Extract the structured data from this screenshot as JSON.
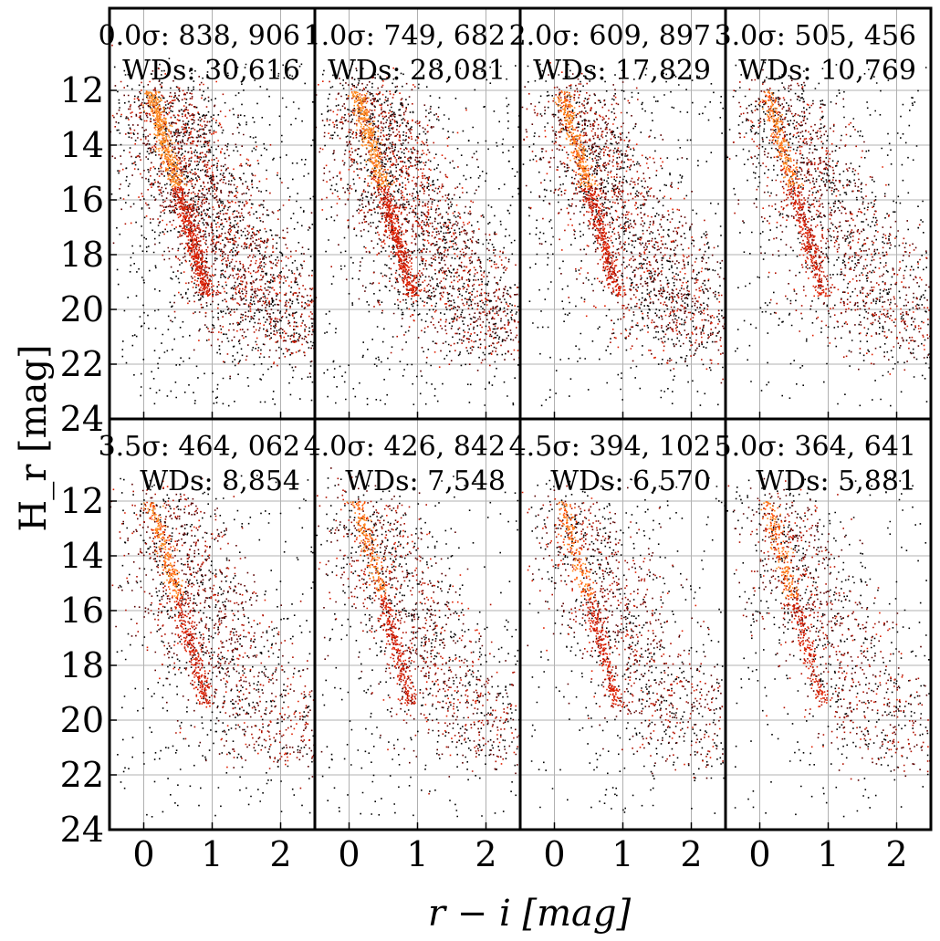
{
  "chart_data": {
    "type": "heatmap",
    "title": "",
    "xlabel": "r − i [mag]",
    "ylabel": "H_r [mag]",
    "xlim": [
      -0.5,
      2.5
    ],
    "ylim": [
      24,
      9
    ],
    "x_ticks": [
      0,
      1,
      2
    ],
    "y_ticks": [
      12,
      14,
      16,
      18,
      20,
      22,
      24
    ],
    "grid": true,
    "colormap": [
      "#000000",
      "#5a0000",
      "#b01000",
      "#e02000",
      "#ff4a00",
      "#ff8a20"
    ],
    "grid_layout": "2 rows x 4 columns, shared axes",
    "panels": [
      {
        "threshold": "0.0σ",
        "total": "838, 906",
        "wds": "30,616",
        "label_line1": "0.0σ: 838, 906",
        "label_line2": "WDs: 30,616",
        "relative_density": 1.0
      },
      {
        "threshold": "1.0σ",
        "total": "749, 682",
        "wds": "28,081",
        "label_line1": "1.0σ: 749, 682",
        "label_line2": "WDs: 28,081",
        "relative_density": 0.9
      },
      {
        "threshold": "2.0σ",
        "total": "609, 897",
        "wds": "17,829",
        "label_line1": "2.0σ: 609, 897",
        "label_line2": "WDs: 17,829",
        "relative_density": 0.75
      },
      {
        "threshold": "3.0σ",
        "total": "505, 456",
        "wds": "10,769",
        "label_line1": "3.0σ: 505, 456",
        "label_line2": "WDs: 10,769",
        "relative_density": 0.62
      },
      {
        "threshold": "3.5σ",
        "total": "464, 062",
        "wds": "8,854",
        "label_line1": "3.5σ: 464, 062",
        "label_line2": "WDs: 8,854",
        "relative_density": 0.56
      },
      {
        "threshold": "4.0σ",
        "total": "426, 842",
        "wds": "7,548",
        "label_line1": "4.0σ: 426, 842",
        "label_line2": "WDs: 7,548",
        "relative_density": 0.52
      },
      {
        "threshold": "4.5σ",
        "total": "394, 102",
        "wds": "6,570",
        "label_line1": "4.5σ: 394, 102",
        "label_line2": "WDs: 6,570",
        "relative_density": 0.48
      },
      {
        "threshold": "5.0σ",
        "total": "364, 641",
        "wds": "5,881",
        "label_line1": "5.0σ: 364, 641",
        "label_line2": "WDs: 5,881",
        "relative_density": 0.44
      }
    ]
  }
}
